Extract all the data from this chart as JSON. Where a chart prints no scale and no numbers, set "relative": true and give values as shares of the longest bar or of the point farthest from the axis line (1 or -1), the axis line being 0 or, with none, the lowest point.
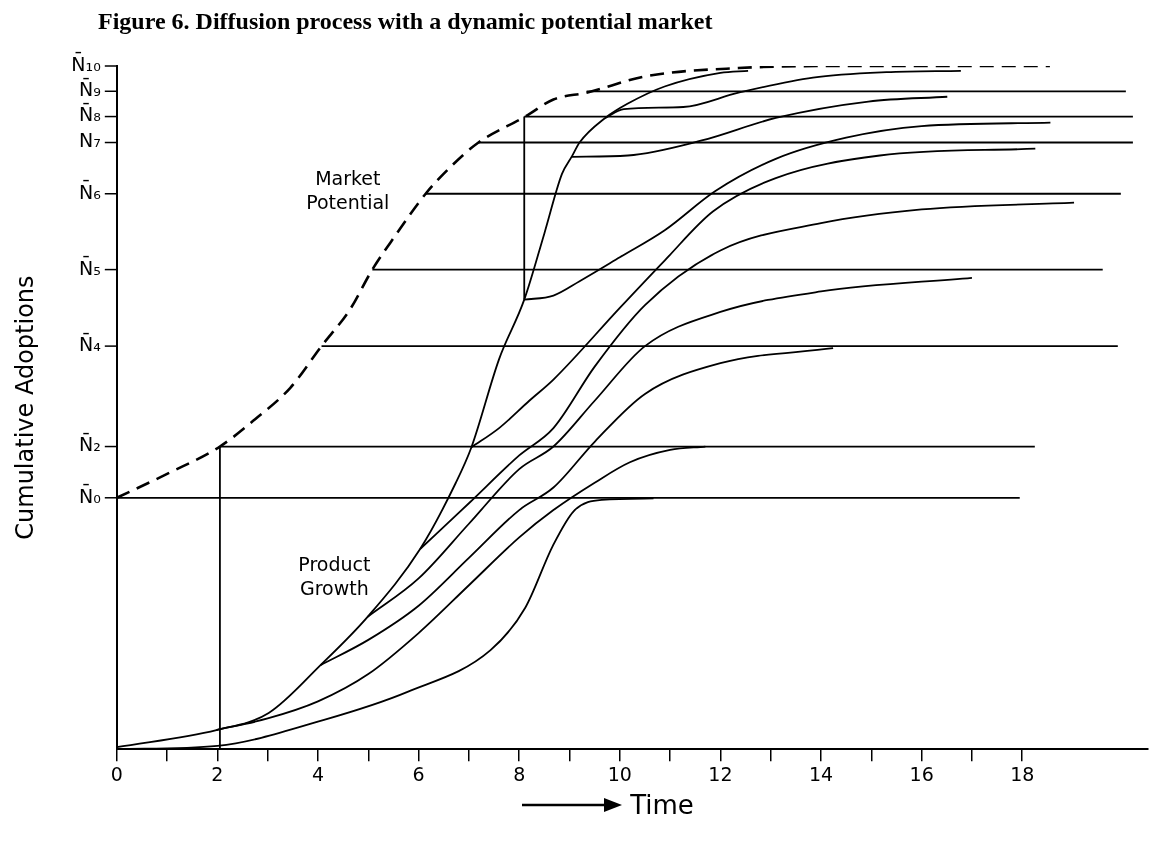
{
  "chart_data": {
    "type": "line",
    "title": "Figure 6. Diffusion process with a dynamic potential market",
    "xlabel": "Time",
    "ylabel": "Cumulative Adoptions",
    "marker": "none",
    "grid": false,
    "xlim": [
      0,
      20.5
    ],
    "relative": true,
    "xticks": [
      0,
      {
        "value": 1,
        "label": null
      },
      2,
      {
        "value": 3,
        "label": null
      },
      4,
      {
        "value": 5,
        "label": null
      },
      6,
      {
        "value": 7,
        "label": null
      },
      8,
      {
        "value": 9,
        "label": null
      },
      10,
      {
        "value": 11,
        "label": null
      },
      12,
      {
        "value": 13,
        "label": null
      },
      14,
      {
        "value": 15,
        "label": null
      },
      16,
      {
        "value": 17,
        "label": null
      },
      18
    ],
    "ref_lines": [
      {
        "axis": "y",
        "value": 0.368,
        "label": "N̄₀"
      },
      {
        "axis": "y",
        "value": 0.443,
        "label": "N̄₂"
      },
      {
        "axis": "y",
        "value": 0.59,
        "label": "N̄₄"
      },
      {
        "axis": "y",
        "value": 0.702,
        "label": "N̄₅"
      },
      {
        "axis": "y",
        "value": 0.813,
        "label": "N̄₆"
      },
      {
        "axis": "y",
        "value": 0.888,
        "label": "N₇"
      },
      {
        "axis": "y",
        "value": 0.926,
        "label": "N̄₈"
      },
      {
        "axis": "y",
        "value": 0.963,
        "label": "N̄₉"
      },
      {
        "axis": "y",
        "value": 1.0,
        "label": "N̄₁₀"
      }
    ],
    "annotations": [
      "Market Potential",
      "Product Growth"
    ],
    "series": [
      {
        "color": "#000000",
        "line_style": "dashed",
        "x": [
          0,
          1.03,
          2.05,
          2.75,
          3.45,
          4.07,
          4.63,
          5.08,
          5.52,
          6.14,
          6.63,
          7.19,
          8.12,
          8.68,
          9.34,
          10.52,
          12.36,
          14.57,
          18.55
        ],
        "values": [
          0.368,
          0.404,
          0.443,
          0.483,
          0.529,
          0.59,
          0.643,
          0.702,
          0.75,
          0.813,
          0.852,
          0.888,
          0.926,
          0.951,
          0.961,
          0.985,
          0.997,
          1.0,
          1.0
        ]
      },
      {
        "color": "#000000",
        "x": [
          0,
          1.98,
          3.02,
          4.05,
          4.99,
          6.03,
          6.74,
          7.05,
          7.6,
          8.1,
          8.5,
          8.85,
          9.05,
          9.2,
          9.71,
          10.16,
          10.89,
          12.0,
          12.55
        ],
        "values": [
          0.003,
          0.028,
          0.053,
          0.123,
          0.194,
          0.293,
          0.39,
          0.442,
          0.571,
          0.658,
          0.755,
          0.842,
          0.868,
          0.888,
          0.924,
          0.945,
          0.97,
          0.99,
          0.993
        ]
      },
      {
        "color": "#000000",
        "x": [
          0,
          2,
          4.12,
          5.78,
          7.43,
          8.12,
          8.67,
          9.09,
          9.64,
          10.67
        ],
        "values": [
          0,
          0.005,
          0.043,
          0.084,
          0.145,
          0.207,
          0.298,
          0.349,
          0.365,
          0.367
        ]
      },
      {
        "color": "#000000",
        "x": [
          1.98,
          3,
          4,
          5,
          6,
          7,
          8,
          8.68,
          9.5,
          10.2,
          11,
          11.7
        ],
        "values": [
          0.028,
          0.045,
          0.07,
          0.11,
          0.17,
          0.24,
          0.31,
          0.35,
          0.39,
          0.42,
          0.438,
          0.443
        ]
      },
      {
        "color": "#000000",
        "x": [
          4.05,
          5,
          6,
          7,
          8,
          8.68,
          9.5,
          10.5,
          12,
          14.24
        ],
        "values": [
          0.123,
          0.16,
          0.21,
          0.28,
          0.35,
          0.383,
          0.45,
          0.52,
          0.565,
          0.587
        ]
      },
      {
        "color": "#000000",
        "x": [
          4.99,
          6,
          7,
          8,
          8.68,
          9.5,
          10.5,
          12,
          14,
          17.0
        ],
        "values": [
          0.194,
          0.25,
          0.33,
          0.41,
          0.443,
          0.51,
          0.59,
          0.64,
          0.67,
          0.69
        ]
      },
      {
        "color": "#000000",
        "x": [
          6.03,
          7,
          8,
          8.68,
          9.5,
          10.5,
          12,
          14,
          16,
          19.03
        ],
        "values": [
          0.293,
          0.36,
          0.43,
          0.47,
          0.56,
          0.65,
          0.73,
          0.77,
          0.79,
          0.8
        ]
      },
      {
        "color": "#000000",
        "x": [
          7.05,
          7.6,
          8.2,
          8.68,
          10.0,
          10.9,
          11.85,
          13.1,
          15.17,
          18.26
        ],
        "values": [
          0.442,
          0.47,
          0.51,
          0.541,
          0.646,
          0.716,
          0.787,
          0.836,
          0.869,
          0.879
        ]
      },
      {
        "color": "#000000",
        "x": [
          8.1,
          8.68,
          9.2,
          10.0,
          10.9,
          11.9,
          13.1,
          14.5,
          16.0,
          18.56
        ],
        "values": [
          0.658,
          0.664,
          0.685,
          0.72,
          0.76,
          0.817,
          0.864,
          0.895,
          0.912,
          0.917
        ]
      },
      {
        "color": "#000000",
        "x": [
          9.05,
          10.16,
          11.63,
          13.1,
          14.94,
          16.51
        ],
        "values": [
          0.867,
          0.869,
          0.891,
          0.924,
          0.948,
          0.955
        ]
      },
      {
        "color": "#000000",
        "x": [
          9.71,
          10.08,
          11.26,
          12.36,
          13.84,
          15.3,
          16.78
        ],
        "values": [
          0.924,
          0.937,
          0.94,
          0.961,
          0.983,
          0.991,
          0.993
        ]
      },
      {
        "color": "#000000",
        "x": [
          0,
          17.95
        ],
        "values": [
          0.368,
          0.368
        ]
      },
      {
        "color": "#000000",
        "x": [
          2.05,
          2.05
        ],
        "values": [
          0,
          0.443
        ]
      },
      {
        "color": "#000000",
        "x": [
          2.05,
          18.25
        ],
        "values": [
          0.443,
          0.443
        ]
      },
      {
        "color": "#000000",
        "x": [
          4.07,
          19.9
        ],
        "values": [
          0.59,
          0.59
        ]
      },
      {
        "color": "#000000",
        "x": [
          5.08,
          19.6
        ],
        "values": [
          0.702,
          0.702
        ]
      },
      {
        "color": "#000000",
        "x": [
          6.14,
          19.96
        ],
        "values": [
          0.813,
          0.813
        ]
      },
      {
        "color": "#000000",
        "x": [
          7.19,
          20.2
        ],
        "values": [
          0.888,
          0.888
        ]
      },
      {
        "color": "#000000",
        "x": [
          8.1,
          8.1
        ],
        "values": [
          0.658,
          0.926
        ]
      },
      {
        "color": "#000000",
        "x": [
          8.1,
          20.2
        ],
        "values": [
          0.926,
          0.926
        ]
      },
      {
        "color": "#000000",
        "x": [
          9.34,
          20.06
        ],
        "values": [
          0.963,
          0.963
        ]
      }
    ]
  }
}
